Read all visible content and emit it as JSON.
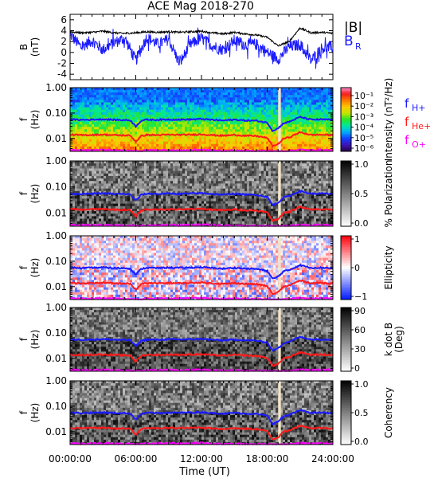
{
  "title": "ACE Mag 2018-270",
  "x_axis": {
    "label": "Time (UT)",
    "ticks": [
      "00:00:00",
      "06:00:00",
      "12:00:00",
      "18:00:00",
      "24:00:00"
    ],
    "tick_hours": [
      0,
      6,
      12,
      18,
      24
    ],
    "range_hours": [
      0,
      24
    ]
  },
  "colors": {
    "B_total": "#000000",
    "B_R": "#1a1aff",
    "f_H": "#1a1aff",
    "f_He": "#ff1a1a",
    "f_O": "#ff00ff"
  },
  "chart_data": [
    {
      "type": "line",
      "panel": "magnetic-field",
      "ylabel_lines": [
        "B",
        "(nT)"
      ],
      "ylim": [
        -5,
        7
      ],
      "yticks": [
        -4,
        -2,
        0,
        2,
        4,
        6
      ],
      "legend": [
        "|B|",
        "B",
        "R"
      ],
      "x_hours": [
        0,
        1,
        2,
        3,
        4,
        5,
        6,
        7,
        8,
        9,
        10,
        11,
        12,
        13,
        14,
        15,
        16,
        17,
        18,
        19,
        20,
        21,
        22,
        23,
        24
      ],
      "series": [
        {
          "name": "|B|",
          "values": [
            3.8,
            3.6,
            3.7,
            3.9,
            3.6,
            3.5,
            3.6,
            3.8,
            3.7,
            3.8,
            3.7,
            3.8,
            3.9,
            3.6,
            3.4,
            3.7,
            3.4,
            3.2,
            2.8,
            1.2,
            2.0,
            4.5,
            3.6,
            3.7,
            3.5
          ]
        },
        {
          "name": "B_R",
          "values": [
            3.3,
            1.0,
            2.2,
            0.5,
            1.8,
            2.6,
            -1.5,
            2.8,
            1.5,
            2.4,
            -2.0,
            1.5,
            2.6,
            1.2,
            0.5,
            2.2,
            1.4,
            1.5,
            0.0,
            -1.2,
            1.0,
            1.5,
            -1.5,
            0.8,
            1.0
          ]
        }
      ]
    },
    {
      "type": "heatmap",
      "panel": "intensity",
      "ylabel_lines": [
        "f",
        "(Hz)"
      ],
      "yscale": "log",
      "ylim": [
        0.0031,
        1.0
      ],
      "yticks": [
        "1.00",
        "0.10",
        "0.01"
      ],
      "colorbar": {
        "label": "Intensity (nT²/Hz)",
        "scale": "log",
        "ticks": [
          "10⁻¹",
          "10⁻²",
          "10⁻³",
          "10⁻⁴",
          "10⁻⁵",
          "10⁻⁶"
        ]
      },
      "gyrofrequency_legend": [
        {
          "base": "f",
          "sub": "H+"
        },
        {
          "base": "f",
          "sub": "He+"
        },
        {
          "base": "f",
          "sub": "O+"
        }
      ]
    },
    {
      "type": "heatmap",
      "panel": "polarization",
      "ylabel_lines": [
        "f",
        "(Hz)"
      ],
      "yscale": "log",
      "ylim": [
        0.0031,
        1.0
      ],
      "yticks": [
        "1.00",
        "0.10",
        "0.01"
      ],
      "colorbar": {
        "label": "% Polarization",
        "ticks": [
          "1.0",
          "0.5",
          "0.0"
        ]
      }
    },
    {
      "type": "heatmap",
      "panel": "ellipticity",
      "ylabel_lines": [
        "f",
        "(Hz)"
      ],
      "yscale": "log",
      "ylim": [
        0.0031,
        1.0
      ],
      "yticks": [
        "1.00",
        "0.10",
        "0.01"
      ],
      "colorbar": {
        "label": "Ellipticity",
        "ticks": [
          "1",
          "0",
          "−1"
        ]
      }
    },
    {
      "type": "heatmap",
      "panel": "k-dot-b",
      "ylabel_lines": [
        "f",
        "(Hz)"
      ],
      "yscale": "log",
      "ylim": [
        0.0031,
        1.0
      ],
      "yticks": [
        "1.00",
        "0.10",
        "0.01"
      ],
      "colorbar": {
        "label_lines": [
          "k dot B",
          "(Deg)"
        ],
        "ticks": [
          "90",
          "60",
          "30",
          "0"
        ]
      }
    },
    {
      "type": "heatmap",
      "panel": "coherency",
      "ylabel_lines": [
        "f",
        "(Hz)"
      ],
      "yscale": "log",
      "ylim": [
        0.0031,
        1.0
      ],
      "yticks": [
        "1.00",
        "0.10",
        "0.01"
      ],
      "colorbar": {
        "label": "Coherency",
        "ticks": [
          "1.0",
          "0.5",
          "0.0"
        ]
      }
    }
  ],
  "gyrofrequency_curves": {
    "x_hours": [
      0,
      1,
      2,
      3,
      4,
      5,
      5.5,
      6,
      6.5,
      7,
      8,
      9,
      10,
      11,
      12,
      13,
      14,
      15,
      16,
      17,
      18,
      18.5,
      19,
      19.5,
      20,
      21,
      22,
      23,
      24
    ],
    "f_H": [
      0.056,
      0.054,
      0.055,
      0.057,
      0.054,
      0.053,
      0.052,
      0.03,
      0.05,
      0.055,
      0.054,
      0.056,
      0.055,
      0.056,
      0.058,
      0.054,
      0.051,
      0.055,
      0.051,
      0.05,
      0.042,
      0.02,
      0.025,
      0.04,
      0.045,
      0.07,
      0.055,
      0.056,
      0.054
    ],
    "f_He": [
      0.014,
      0.0135,
      0.0138,
      0.0142,
      0.0135,
      0.0132,
      0.013,
      0.0075,
      0.0125,
      0.0138,
      0.0135,
      0.014,
      0.0138,
      0.014,
      0.0145,
      0.0135,
      0.0128,
      0.0138,
      0.0128,
      0.0125,
      0.0105,
      0.005,
      0.006,
      0.01,
      0.011,
      0.0175,
      0.0138,
      0.014,
      0.0135
    ],
    "f_O": [
      0.0035,
      0.0034,
      0.0034,
      0.0035,
      0.0034,
      0.0033,
      0.0033,
      0.0032,
      0.0032,
      0.0034,
      0.0034,
      0.0035,
      0.0034,
      0.0035,
      0.0036,
      0.0034,
      0.0032,
      0.0034,
      0.0032,
      0.0032,
      0.0032,
      0.0031,
      0.0031,
      0.0031,
      0.0032,
      0.0036,
      0.0034,
      0.0035,
      0.0034
    ]
  },
  "data_gap_hours": [
    19.0,
    19.25
  ]
}
